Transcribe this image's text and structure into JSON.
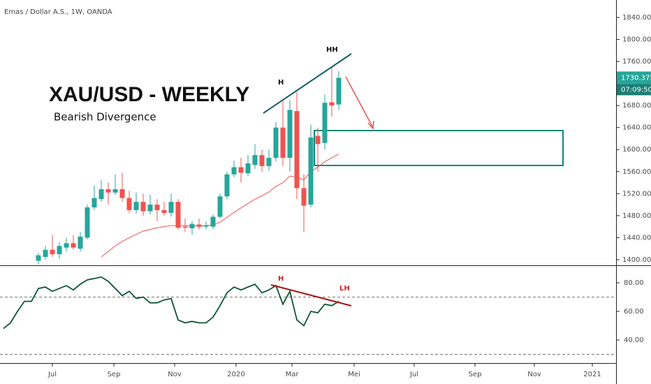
{
  "chart_data": {
    "type": "candlestick",
    "title": "Emas / Dollar A.S., 1W, OANDA",
    "x": [
      0,
      1,
      2,
      3,
      4,
      5,
      6,
      7,
      8,
      9,
      10,
      11,
      12,
      13,
      14,
      15,
      16,
      17,
      18,
      19,
      20,
      21,
      22,
      23,
      24,
      25,
      26,
      27,
      28,
      29,
      30,
      31,
      32,
      33,
      34,
      35,
      36,
      37,
      38,
      39,
      40,
      41,
      42,
      43
    ],
    "open": [
      1398,
      1405,
      1418,
      1410,
      1422,
      1430,
      1420,
      1440,
      1495,
      1510,
      1528,
      1522,
      1528,
      1512,
      1490,
      1505,
      1488,
      1500,
      1490,
      1485,
      1505,
      1460,
      1457,
      1464,
      1460,
      1460,
      1478,
      1515,
      1555,
      1568,
      1557,
      1572,
      1590,
      1570,
      1585,
      1640,
      1585,
      1670,
      1530,
      1500,
      1625,
      1612,
      1686,
      1682
    ],
    "high": [
      1412,
      1425,
      1445,
      1432,
      1440,
      1445,
      1450,
      1500,
      1535,
      1545,
      1540,
      1555,
      1558,
      1525,
      1522,
      1520,
      1518,
      1510,
      1505,
      1520,
      1510,
      1475,
      1470,
      1475,
      1470,
      1482,
      1520,
      1560,
      1580,
      1585,
      1590,
      1610,
      1600,
      1600,
      1650,
      1690,
      1690,
      1705,
      1555,
      1645,
      1640,
      1700,
      1748,
      1742
    ],
    "low": [
      1392,
      1400,
      1405,
      1402,
      1415,
      1418,
      1415,
      1437,
      1490,
      1505,
      1500,
      1518,
      1505,
      1485,
      1484,
      1480,
      1482,
      1470,
      1480,
      1478,
      1455,
      1450,
      1445,
      1455,
      1455,
      1455,
      1475,
      1510,
      1550,
      1540,
      1552,
      1565,
      1560,
      1562,
      1578,
      1570,
      1560,
      1510,
      1450,
      1495,
      1560,
      1600,
      1660,
      1672
    ],
    "close": [
      1408,
      1418,
      1410,
      1425,
      1430,
      1422,
      1442,
      1495,
      1512,
      1528,
      1522,
      1528,
      1512,
      1490,
      1505,
      1488,
      1500,
      1490,
      1485,
      1505,
      1458,
      1458,
      1465,
      1460,
      1462,
      1478,
      1515,
      1555,
      1568,
      1558,
      1575,
      1590,
      1570,
      1585,
      1640,
      1585,
      1672,
      1530,
      1498,
      1622,
      1610,
      1685,
      1680,
      1730.375
    ],
    "up_color": "#26a69a",
    "down_color": "#ef5350",
    "ema": {
      "color": "#ef5350",
      "values": [
        null,
        null,
        null,
        null,
        null,
        null,
        null,
        null,
        null,
        1405,
        1415,
        1425,
        1433,
        1440,
        1446,
        1452,
        1455,
        1458,
        1460,
        1462,
        1462,
        1462,
        1461,
        1461,
        1462,
        1463,
        1468,
        1477,
        1486,
        1494,
        1502,
        1510,
        1516,
        1523,
        1533,
        1540,
        1552,
        1550,
        1545,
        1560,
        1568,
        1578,
        1585,
        1592
      ]
    },
    "xlim": [
      -5.5,
      82.7
    ],
    "xticks": [
      {
        "value": 2,
        "label": "Jul"
      },
      {
        "value": 10.8,
        "label": "Sep"
      },
      {
        "value": 19.5,
        "label": "Nov"
      },
      {
        "value": 28.3,
        "label": "2020"
      },
      {
        "value": 36.3,
        "label": "Mar"
      },
      {
        "value": 45.2,
        "label": "Mei"
      },
      {
        "value": 53.8,
        "label": "Jul"
      },
      {
        "value": 62.5,
        "label": "Sep"
      },
      {
        "value": 71,
        "label": "Nov"
      },
      {
        "value": 79.3,
        "label": "2021"
      }
    ],
    "ylim": [
      1389.8,
      1871.7
    ],
    "yticks": [
      {
        "value": 1400,
        "label": "1400.000"
      },
      {
        "value": 1440,
        "label": "1440.000"
      },
      {
        "value": 1480,
        "label": "1480.000"
      },
      {
        "value": 1520,
        "label": "1520.000"
      },
      {
        "value": 1560,
        "label": "1560.000"
      },
      {
        "value": 1600,
        "label": "1600.000"
      },
      {
        "value": 1640,
        "label": "1640.000"
      },
      {
        "value": 1680,
        "label": "1680.000"
      },
      {
        "value": 1720,
        "label": "1720.000"
      },
      {
        "value": 1760,
        "label": "1760.000"
      },
      {
        "value": 1800,
        "label": "1800.000"
      },
      {
        "value": 1840,
        "label": "1840.000"
      }
    ],
    "timer": "07:09:50",
    "annotations": [
      "XAU/USD - WEEKLY",
      "Bearish Divergence",
      "H",
      "HH"
    ],
    "rsi": {
      "type": "line",
      "color": "#0d5535",
      "x": [
        -5,
        -4,
        -3,
        -2,
        -1,
        0,
        1,
        2,
        3,
        4,
        5,
        6,
        7,
        8,
        9,
        10,
        11,
        12,
        13,
        14,
        15,
        16,
        17,
        18,
        19,
        20,
        21,
        22,
        23,
        24,
        25,
        26,
        27,
        28,
        29,
        30,
        31,
        32,
        33,
        34,
        35,
        36,
        37,
        38,
        39,
        40,
        41,
        42,
        43
      ],
      "values": [
        48,
        52,
        60,
        67,
        67,
        76,
        77,
        74,
        76,
        78,
        75,
        79,
        82,
        83,
        84,
        81,
        76,
        71,
        74,
        69,
        70,
        66,
        66,
        68,
        69,
        54,
        52,
        53,
        52,
        52,
        56,
        64,
        73,
        77,
        75,
        77,
        79,
        73,
        75,
        78,
        65,
        74,
        54,
        50,
        60,
        59,
        65,
        64,
        67
      ],
      "ylim": [
        23.9,
        91.7
      ],
      "yticks": [
        {
          "value": 40,
          "label": "40.00"
        },
        {
          "value": 60,
          "label": "60.00"
        },
        {
          "value": 80,
          "label": "80.00"
        }
      ],
      "levels": [
        30,
        70
      ],
      "annotations": [
        "H",
        "LH"
      ]
    }
  }
}
